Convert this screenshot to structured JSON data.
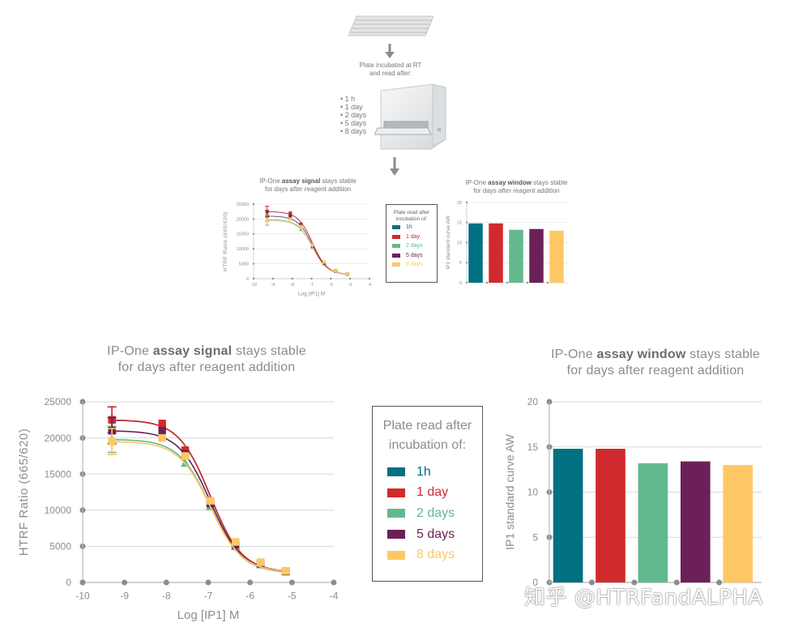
{
  "workflow": {
    "step_text_line1": "Plate incubated at RT",
    "step_text_line2": "and read after:",
    "time_points": [
      "• 1 h",
      "• 1 day",
      "• 2 days",
      "• 5 days",
      "• 8 days"
    ]
  },
  "series_colors": {
    "1h": "#007082",
    "1 day": "#d12a2e",
    "2 days": "#63b98e",
    "5 days": "#6b2157",
    "8 days": "#fdc864"
  },
  "legend": {
    "title_line1": "Plate read after",
    "title_line2": "incubation of:",
    "items": [
      {
        "label": "1h",
        "color": "#007082"
      },
      {
        "label": "1 day",
        "color": "#d12a2e"
      },
      {
        "label": "2 days",
        "color": "#63b98e"
      },
      {
        "label": "5 days",
        "color": "#6b2157"
      },
      {
        "label": "8 days",
        "color": "#fdc864"
      }
    ]
  },
  "signal_title": {
    "pre": "IP-One ",
    "bold": "assay signal",
    "post": " stays stable",
    "line2": "for days after reagent addition"
  },
  "window_title": {
    "pre": "IP-One ",
    "bold": "assay window",
    "post": " stays stable",
    "line2": "for days after reagent addition"
  },
  "watermark": "知乎 @HTRFandALPHA",
  "chart_data": [
    {
      "type": "scatter",
      "title": "IP-One assay signal stays stable for days after reagent addition",
      "xlabel": "Log [IP1] M",
      "ylabel": "HTRF Ratio (665/620)",
      "xlim": [
        -10,
        -4
      ],
      "ylim": [
        0,
        25000
      ],
      "xticks": [
        -10,
        -9,
        -8,
        -7,
        -6,
        -5,
        -4
      ],
      "yticks": [
        0,
        5000,
        10000,
        15000,
        20000,
        25000
      ],
      "x": [
        -9.3,
        -8.1,
        -7.55,
        -6.95,
        -6.35,
        -5.75,
        -5.15
      ],
      "series": [
        {
          "name": "1h",
          "values": [
            22500,
            21500,
            18000,
            11000,
            5000,
            2500,
            1500
          ]
        },
        {
          "name": "1 day",
          "values": [
            22500,
            22000,
            18300,
            11200,
            5300,
            2700,
            1600
          ]
        },
        {
          "name": "2 days",
          "values": [
            19800,
            20300,
            16500,
            10500,
            5000,
            2500,
            1500
          ]
        },
        {
          "name": "5 days",
          "values": [
            21000,
            21000,
            17800,
            10900,
            5200,
            2600,
            1550
          ]
        },
        {
          "name": "8 days",
          "values": [
            19500,
            20000,
            17500,
            11300,
            5600,
            2800,
            1600
          ]
        }
      ]
    },
    {
      "type": "bar",
      "title": "IP-One assay window stays stable for days after reagent addition",
      "xlabel": "",
      "ylabel": "IP1 standard curve AW",
      "ylim": [
        0,
        20
      ],
      "yticks": [
        0,
        5,
        10,
        15,
        20
      ],
      "categories": [
        "1h",
        "1 day",
        "2 days",
        "5 days",
        "8 days"
      ],
      "values": [
        14.8,
        14.8,
        13.2,
        13.4,
        13.0
      ]
    }
  ]
}
